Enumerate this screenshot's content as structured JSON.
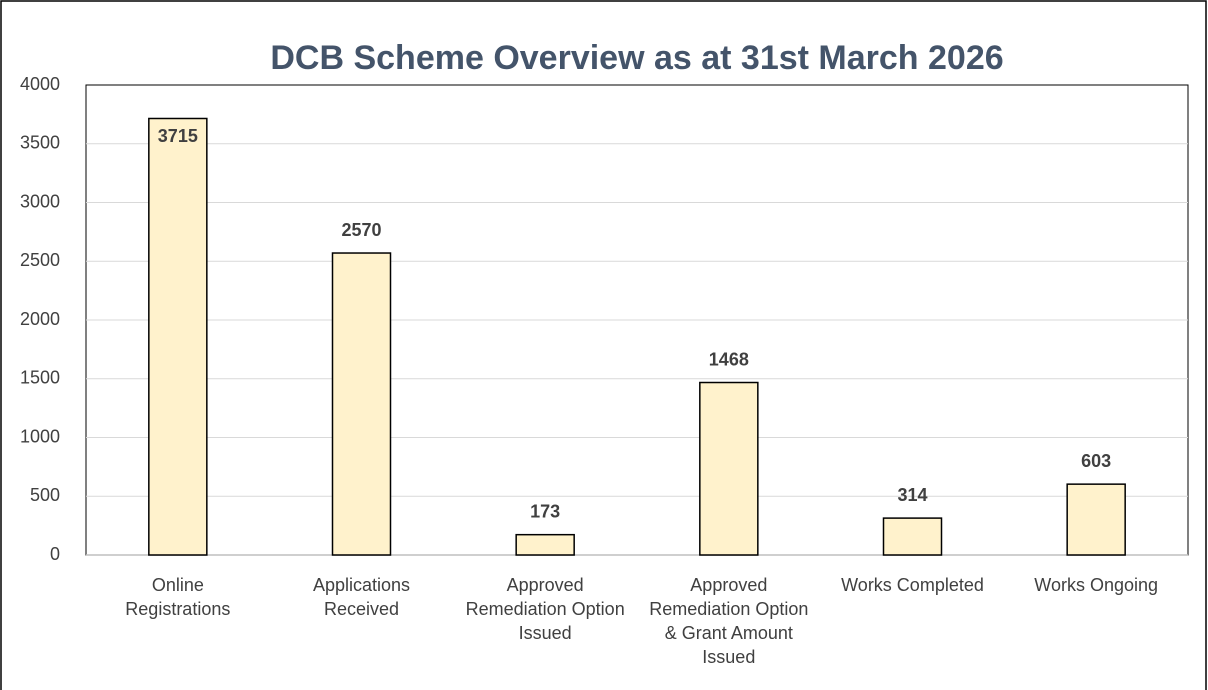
{
  "chart_data": {
    "type": "bar",
    "title": "DCB Scheme Overview as at 31st March 2026",
    "categories": [
      "Online Registrations",
      "Applications Received",
      "Approved Remediation Option Issued",
      "Approved Remediation Option & Grant Amount Issued",
      "Works Completed",
      "Works Ongoing"
    ],
    "values": [
      3715,
      2570,
      173,
      1468,
      314,
      603
    ],
    "color": "#fff2cc",
    "ylim": [
      0,
      4000
    ],
    "yticks": [
      0,
      500,
      1000,
      1500,
      2000,
      2500,
      3000,
      3500,
      4000
    ],
    "grid": true
  }
}
